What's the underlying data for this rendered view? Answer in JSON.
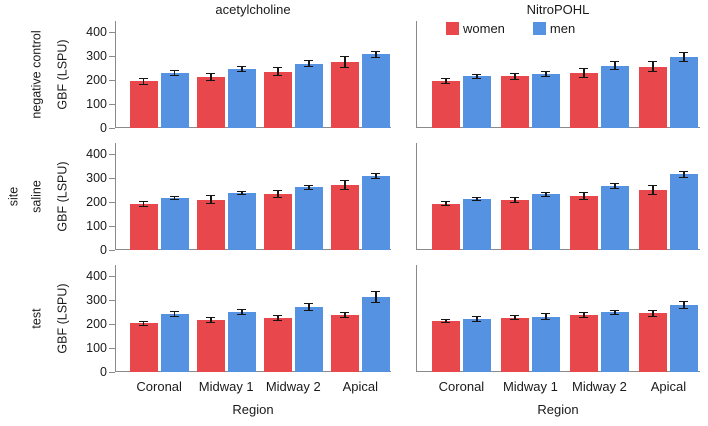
{
  "figure": {
    "col_titles": [
      "acetylcholine",
      "NitroPOHL"
    ],
    "row_group_label": "site",
    "x_axis_label": "Region",
    "y_axis_label": "GBF (LSPU)"
  },
  "legend": {
    "items": [
      {
        "label": "women",
        "color": "#e8474b"
      },
      {
        "label": "men",
        "color": "#5593e2"
      }
    ]
  },
  "chart_data": {
    "type": "bar",
    "title": "",
    "xlabel": "Region",
    "ylabel": "GBF (LSPU)",
    "facet_cols": [
      "acetylcholine",
      "NitroPOHL"
    ],
    "facet_rows": [
      "negative control",
      "saline",
      "test"
    ],
    "row_group_label": "site",
    "categories": [
      "Coronal",
      "Midway 1",
      "Midway 2",
      "Apical"
    ],
    "series_names": [
      "women",
      "men"
    ],
    "colors": {
      "women": "#e8474b",
      "men": "#5593e2"
    },
    "error_bars": true,
    "yticks": [
      0,
      100,
      200,
      300,
      400
    ],
    "ylim": [
      0,
      445
    ],
    "legend_position": "top-right-panel",
    "grid": false,
    "panels": [
      {
        "row": "negative control",
        "col": "acetylcholine",
        "series": [
          {
            "name": "women",
            "values": [
              195,
              212,
              235,
              277
            ],
            "errors": [
              15,
              18,
              20,
              25
            ]
          },
          {
            "name": "men",
            "values": [
              228,
              245,
              268,
              307
            ],
            "errors": [
              12,
              13,
              14,
              15
            ]
          }
        ]
      },
      {
        "row": "negative control",
        "col": "NitroPOHL",
        "series": [
          {
            "name": "women",
            "values": [
              196,
              215,
              230,
              256
            ],
            "errors": [
              13,
              15,
              20,
              22
            ]
          },
          {
            "name": "men",
            "values": [
              215,
              226,
              260,
              296
            ],
            "errors": [
              10,
              12,
              18,
              20
            ]
          }
        ]
      },
      {
        "row": "saline",
        "col": "acetylcholine",
        "series": [
          {
            "name": "women",
            "values": [
              192,
              210,
              233,
              270
            ],
            "errors": [
              14,
              18,
              18,
              22
            ]
          },
          {
            "name": "men",
            "values": [
              217,
              237,
              262,
              307
            ],
            "errors": [
              7,
              9,
              10,
              12
            ]
          }
        ]
      },
      {
        "row": "saline",
        "col": "NitroPOHL",
        "series": [
          {
            "name": "women",
            "values": [
              193,
              208,
              225,
              250
            ],
            "errors": [
              10,
              14,
              18,
              20
            ]
          },
          {
            "name": "men",
            "values": [
              212,
              232,
              268,
              315
            ],
            "errors": [
              9,
              11,
              13,
              13
            ]
          }
        ]
      },
      {
        "row": "test",
        "col": "acetylcholine",
        "series": [
          {
            "name": "women",
            "values": [
              203,
              218,
              225,
              237
            ],
            "errors": [
              10,
              13,
              13,
              14
            ]
          },
          {
            "name": "men",
            "values": [
              242,
              250,
              270,
              312
            ],
            "errors": [
              12,
              12,
              17,
              25
            ]
          }
        ]
      },
      {
        "row": "test",
        "col": "NitroPOHL",
        "series": [
          {
            "name": "women",
            "values": [
              213,
              227,
              237,
              245
            ],
            "errors": [
              8,
              11,
              12,
              14
            ]
          },
          {
            "name": "men",
            "values": [
              222,
              230,
              248,
              278
            ],
            "errors": [
              13,
              15,
              12,
              16
            ]
          }
        ]
      }
    ]
  }
}
